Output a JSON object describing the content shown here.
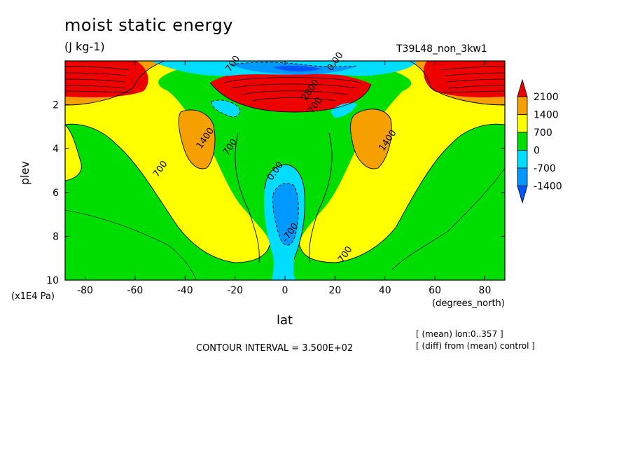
{
  "title": "moist static energy",
  "units": "(J kg-1)",
  "run_label": "T39L48_non_3kw1",
  "contour_interval": "CONTOUR INTERVAL = 3.500E+02",
  "meta": [
    "[ (mean) lon:0..357 ]",
    "[ (diff) from (mean) control ]"
  ],
  "colors": {
    "above_2100": "#ee0000",
    "1400_2100": "#f5a000",
    "700_1400": "#ffff00",
    "0_700": "#00dd00",
    "-700_0": "#00ddff",
    "-1400_-700": "#0099ff",
    "below_-1400": "#0055ff"
  },
  "chart_data": {
    "type": "contour",
    "title": "moist static energy",
    "units": "(J kg-1)",
    "xlabel": "lat",
    "xunits": "(degrees_north)",
    "ylabel": "plev",
    "yunits": "(x1E4 Pa)",
    "xlim": [
      -88,
      88
    ],
    "ylim": [
      10,
      0
    ],
    "xticks": [
      -80,
      -60,
      -40,
      -20,
      0,
      20,
      40,
      60,
      80
    ],
    "xtick_labels": [
      "-80",
      "-60",
      "-40",
      "-20",
      "0",
      "20",
      "40",
      "60",
      "80"
    ],
    "yticks": [
      2,
      4,
      6,
      8,
      10
    ],
    "ytick_labels": [
      "2",
      "4",
      "6",
      "8",
      "10"
    ],
    "colorbar_levels": [
      2100,
      1400,
      700,
      0,
      -700,
      -1400
    ],
    "colorbar_labels": [
      "2100",
      "1400",
      "700",
      "0",
      "-700",
      "-1400"
    ],
    "contour_labels": [
      {
        "text": "700",
        "lat": -49,
        "plev": 5.0
      },
      {
        "text": "1400",
        "lat": -31,
        "plev": 3.6
      },
      {
        "text": "700",
        "lat": -21,
        "plev": 4.0
      },
      {
        "text": "0.00",
        "lat": -3,
        "plev": 5.1
      },
      {
        "text": "-700",
        "lat": 3,
        "plev": 7.9
      },
      {
        "text": "700",
        "lat": 25,
        "plev": 8.9
      },
      {
        "text": "1400",
        "lat": 42,
        "plev": 3.7
      },
      {
        "text": "700",
        "lat": 13,
        "plev": 2.1
      },
      {
        "text": "2800",
        "lat": 11,
        "plev": 1.4
      },
      {
        "text": "700",
        "lat": -20,
        "plev": 0.2
      },
      {
        "text": "0.00",
        "lat": 21,
        "plev": 0.1
      }
    ]
  }
}
